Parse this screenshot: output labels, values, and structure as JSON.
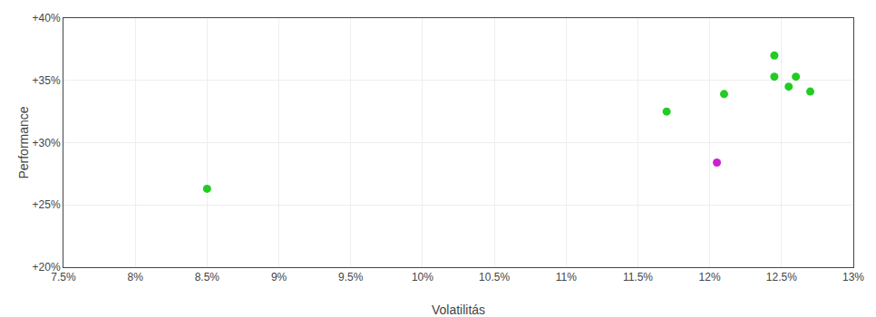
{
  "chart_data": {
    "type": "scatter",
    "xlabel": "Volatilitás",
    "ylabel": "Performance",
    "xlim": [
      0.075,
      0.13
    ],
    "ylim": [
      0.2,
      0.4
    ],
    "xticks": [
      {
        "value": 0.075,
        "label": "7.5%"
      },
      {
        "value": 0.08,
        "label": "8%"
      },
      {
        "value": 0.085,
        "label": "8.5%"
      },
      {
        "value": 0.09,
        "label": "9%"
      },
      {
        "value": 0.095,
        "label": "9.5%"
      },
      {
        "value": 0.1,
        "label": "10%"
      },
      {
        "value": 0.105,
        "label": "10.5%"
      },
      {
        "value": 0.11,
        "label": "11%"
      },
      {
        "value": 0.115,
        "label": "11.5%"
      },
      {
        "value": 0.12,
        "label": "12%"
      },
      {
        "value": 0.125,
        "label": "12.5%"
      },
      {
        "value": 0.13,
        "label": "13%"
      }
    ],
    "yticks": [
      {
        "value": 0.2,
        "label": "+20%"
      },
      {
        "value": 0.25,
        "label": "+25%"
      },
      {
        "value": 0.3,
        "label": "+30%"
      },
      {
        "value": 0.35,
        "label": "+35%"
      },
      {
        "value": 0.4,
        "label": "+40%"
      }
    ],
    "grid": true,
    "series": [
      {
        "color": "#22cc22",
        "x": [
          0.085,
          0.117,
          0.121,
          0.1245,
          0.1245,
          0.1255,
          0.126,
          0.127
        ],
        "values": [
          0.263,
          0.325,
          0.339,
          0.37,
          0.353,
          0.345,
          0.353,
          0.341
        ]
      },
      {
        "color": "#cc22cc",
        "x": [
          0.1205
        ],
        "values": [
          0.284
        ]
      }
    ]
  }
}
